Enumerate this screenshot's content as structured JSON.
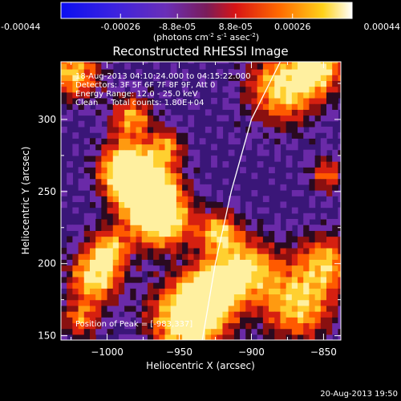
{
  "colorbar": {
    "tick_labels": [
      "-0.00044",
      "-0.00026",
      "-8.8e-05",
      "8.8e-05",
      "0.00026",
      "0.00044"
    ],
    "tick_values": [
      -0.00044,
      -0.00026,
      -8.8e-05,
      8.8e-05,
      0.00026,
      0.00044
    ],
    "range": [
      -0.00044,
      0.00044
    ],
    "units_main": "(photons cm",
    "units_exp1": "-2",
    "units_mid": " s",
    "units_exp2": "-1",
    "units_end": " asec",
    "units_exp3": "-2",
    "units_close": ")"
  },
  "chart_data": {
    "type": "heatmap",
    "title": "Reconstructed RHESSI Image",
    "xlabel": "Heliocentric X (arcsec)",
    "ylabel": "Heliocentric Y (arcsec)",
    "xlim": [
      -1032,
      -838
    ],
    "ylim": [
      147,
      340
    ],
    "xticks": [
      -1000,
      -950,
      -900,
      -850
    ],
    "yticks": [
      150,
      200,
      250,
      300
    ],
    "xtick_labels": [
      "−1000",
      "−950",
      "−900",
      "−850"
    ],
    "ytick_labels": [
      "150",
      "200",
      "250",
      "300"
    ],
    "annotations": [
      "18-Aug-2013 04:10:24.000 to 04:15:22.000",
      "Detectors: 3F 5F 6F 7F 8F 9F, Att 0",
      "Energy Range: 12.0 - 25.0 keV",
      "Clean     Total counts: 1.80E+04"
    ],
    "peak_label": "Position of Peak = [-983,337]",
    "limb_curve": [
      [
        -934,
        147
      ],
      [
        -925,
        200
      ],
      [
        -914,
        250
      ],
      [
        -900,
        300
      ],
      [
        -880,
        340
      ]
    ],
    "colormap": "rainbow-heat (blue-purple-red-orange-yellow-white)"
  },
  "footer": {
    "timestamp": "20-Aug-2013 19:50"
  }
}
